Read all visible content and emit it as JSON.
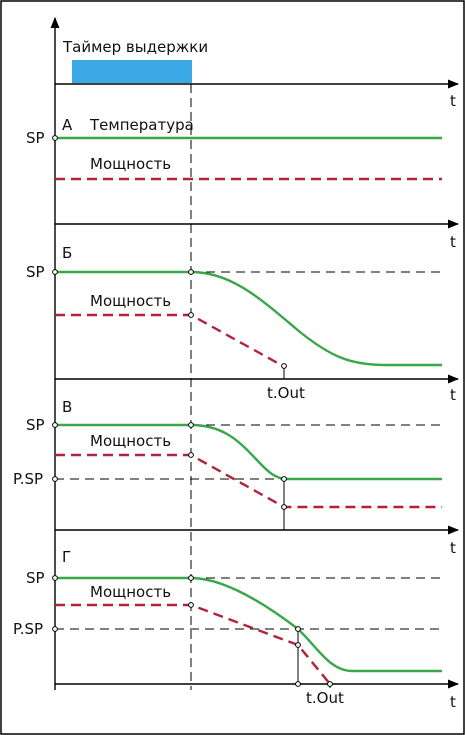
{
  "timer_label": "Таймер выдержки",
  "axis_label": "t",
  "sp_label": "SP",
  "psp_label": "P.SP",
  "tout_label": "t.Out",
  "power_label": "Мощность",
  "temperature_label": "Температура",
  "panels": [
    {
      "letter": "А"
    },
    {
      "letter": "Б"
    },
    {
      "letter": "В"
    },
    {
      "letter": "Г"
    }
  ],
  "colors": {
    "timer_bar": "#3aa9e6",
    "temperature": "#3aa64a",
    "power": "#b2233a"
  }
}
